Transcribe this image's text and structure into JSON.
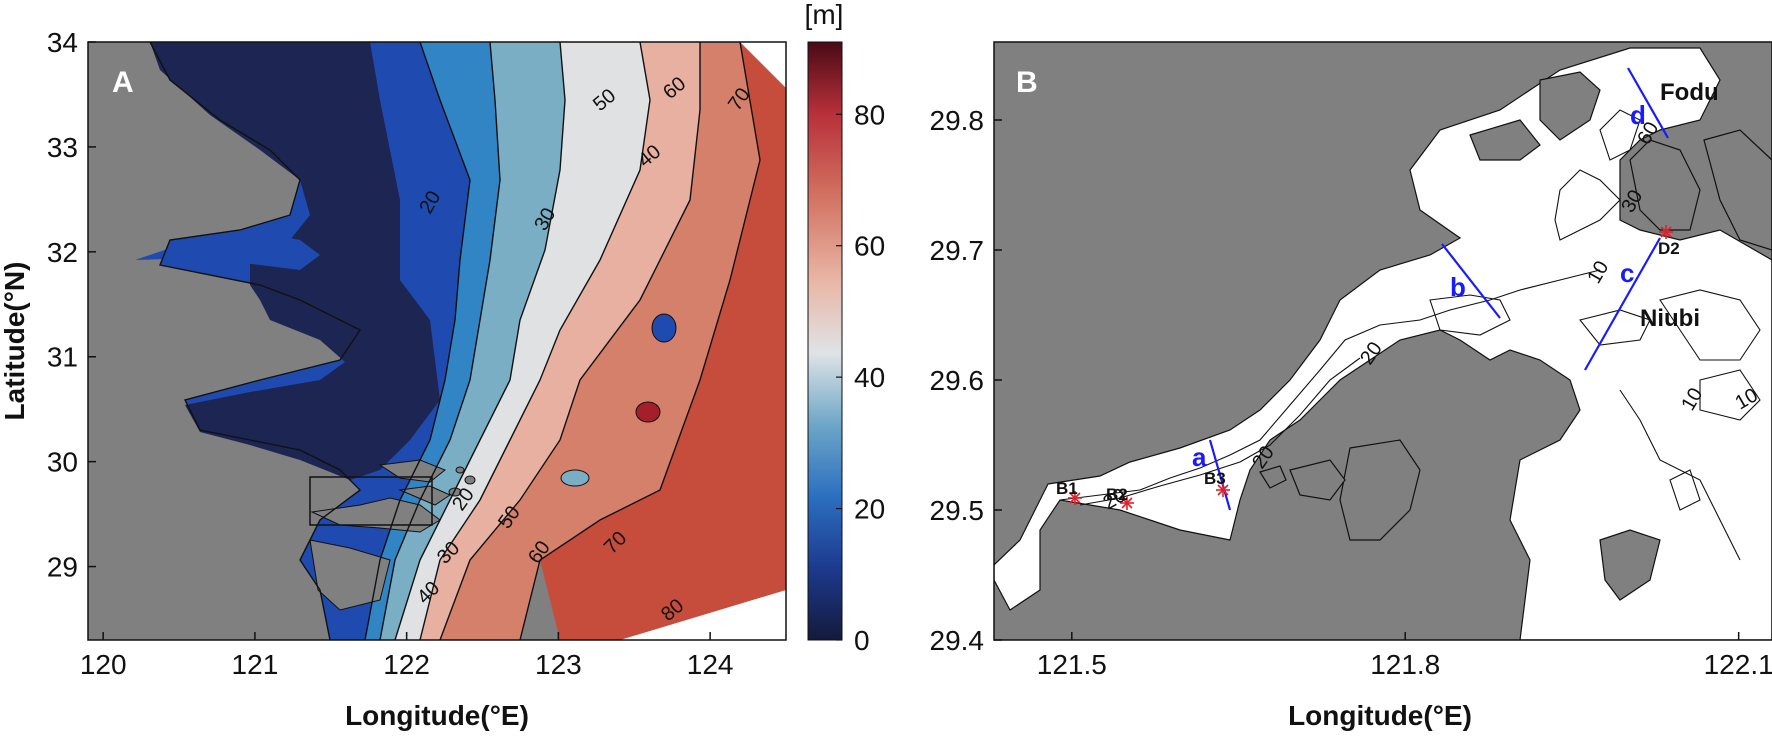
{
  "panel_a": {
    "letter": "A",
    "xlabel": "Longitude(°E)",
    "ylabel": "Latitude(°N)",
    "xticks": [
      "120",
      "121",
      "122",
      "123",
      "124"
    ],
    "yticks": [
      "29",
      "30",
      "31",
      "32",
      "33",
      "34"
    ],
    "contour_labels": [
      "20",
      "30",
      "40",
      "50",
      "60",
      "70",
      "20",
      "30",
      "40",
      "50",
      "60",
      "70",
      "80"
    ],
    "colors": {
      "land": "#808080",
      "depth_0_10": "#1d2553",
      "depth_10_20": "#1f4bb0",
      "depth_20_30": "#3285c4",
      "depth_30_40": "#7aaec5",
      "depth_40_50": "#dfe1e3",
      "depth_50_60": "#e7b0a0",
      "depth_60_70": "#d4806b",
      "depth_70_80": "#c64d3c",
      "depth_80_plus": "#a51f2a"
    }
  },
  "colorbar": {
    "unit": "[m]",
    "ticks": [
      "0",
      "20",
      "40",
      "60",
      "80"
    ]
  },
  "panel_b": {
    "letter": "B",
    "xlabel": "Longitude(°E)",
    "xticks": [
      "121.5",
      "121.8",
      "122.1"
    ],
    "yticks": [
      "29.4",
      "29.5",
      "29.6",
      "29.7",
      "29.8"
    ],
    "stations": [
      "B1",
      "B2",
      "B3",
      "D2"
    ],
    "sections": [
      "a",
      "b",
      "c",
      "d"
    ],
    "places": [
      "Fodu",
      "Niubi"
    ],
    "contour_labels": [
      "20",
      "20",
      "10",
      "10",
      "10",
      "20",
      "30",
      "60"
    ],
    "colors": {
      "land": "#808080",
      "water": "#ffffff",
      "section_line": "#1a1aff",
      "station_marker": "#e0202a"
    }
  }
}
